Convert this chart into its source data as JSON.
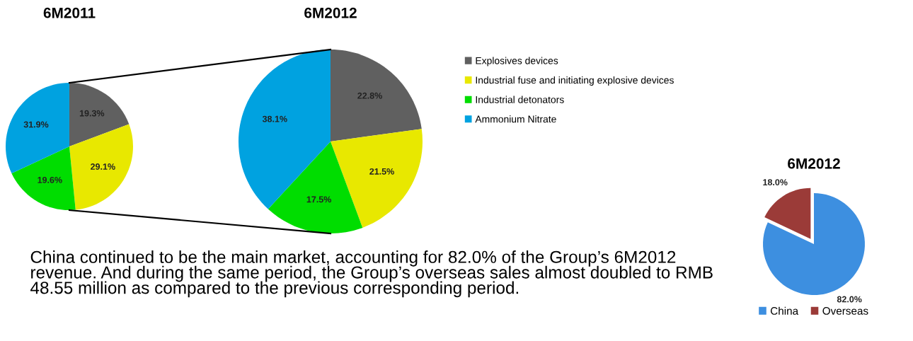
{
  "chart_data": [
    {
      "type": "pie",
      "title": "6M2011",
      "categories": [
        "Explosives devices",
        "Industrial fuse and initiating explosive devices",
        "Industrial detonators",
        "Ammonium Nitrate"
      ],
      "values": [
        19.3,
        29.1,
        19.6,
        31.9
      ],
      "colors": [
        "#606060",
        "#e8e800",
        "#00dd00",
        "#00a2e0"
      ],
      "value_labels": [
        "19.3%",
        "29.1%",
        "19.6%",
        "31.9%"
      ],
      "legend": "right"
    },
    {
      "type": "pie",
      "title": "6M2012",
      "categories": [
        null,
        null,
        null,
        null
      ],
      "values": [
        22.8,
        21.5,
        17.5,
        38.1
      ],
      "colors": [
        "#606060",
        "#e8e800",
        "#00dd00",
        "#00a2e0"
      ],
      "value_labels": [
        "22.8%",
        "21.5%",
        "17.5%",
        "38.1%"
      ],
      "legend": false
    },
    {
      "type": "pie",
      "title": "6M2012",
      "categories": [
        "China",
        "Overseas"
      ],
      "values": [
        82.0,
        18.0
      ],
      "colors": [
        "#3d8fe0",
        "#9b3b38"
      ],
      "value_labels": [
        "82.0%",
        "18.0%"
      ],
      "legend": "bottom"
    },
    {
      "type": "other",
      "annotations": [
        "China continued to be the main market, accounting for 82.0% of the Group’s 6M2012 revenue. And during the same period, the Group’s overseas sales almost doubled to RMB 48.55 million as compared to the previous corresponding period."
      ]
    }
  ]
}
